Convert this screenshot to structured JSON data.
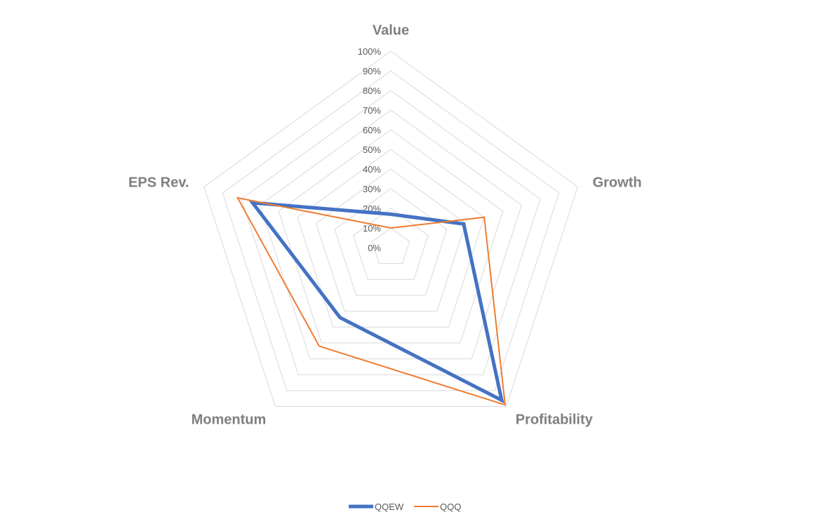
{
  "chart_data": {
    "type": "radar",
    "categories": [
      "Value",
      "Growth",
      "Profitability",
      "Momentum",
      "EPS Rev."
    ],
    "r_ticks": [
      "0%",
      "10%",
      "20%",
      "30%",
      "40%",
      "50%",
      "60%",
      "70%",
      "80%",
      "90%",
      "100%"
    ],
    "rlim": [
      0,
      100
    ],
    "grid": true,
    "legend_position": "bottom",
    "series": [
      {
        "name": "QQEW",
        "values": [
          17,
          39,
          96,
          44,
          74
        ],
        "color": "#4472c4"
      },
      {
        "name": "QQQ",
        "values": [
          10,
          50,
          99,
          62,
          82
        ],
        "color": "#ed7d31"
      }
    ]
  }
}
